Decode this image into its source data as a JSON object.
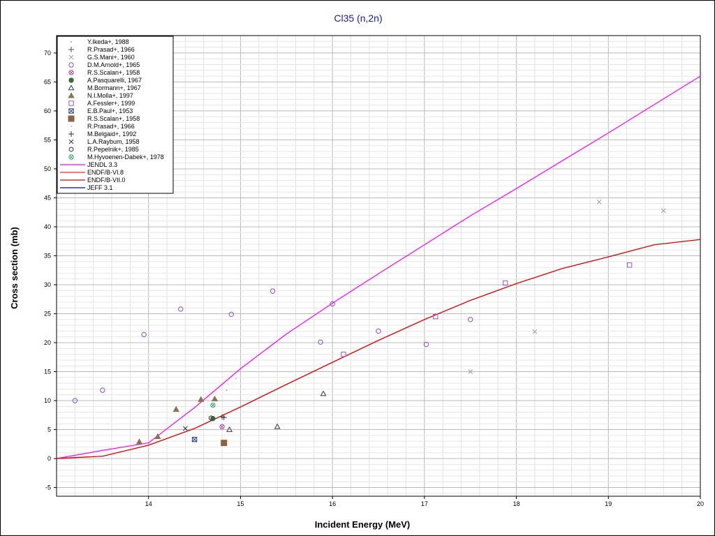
{
  "chart_data": {
    "type": "scatter",
    "title": "Cl35 (n,2n)",
    "xlabel": "Incident Energy (MeV)",
    "ylabel": "Cross section (mb)",
    "xlim": [
      13,
      20
    ],
    "ylim": [
      -6.5,
      73
    ],
    "xticks": [
      14,
      15,
      16,
      17,
      18,
      19,
      20
    ],
    "yticks": [
      -5,
      0,
      5,
      10,
      15,
      20,
      25,
      30,
      35,
      40,
      45,
      50,
      55,
      60,
      65,
      70
    ],
    "grid": true,
    "legend_position": "top-left",
    "series": [
      {
        "name": "Y.Ikeda+, 1988",
        "marker": "dot",
        "color": "#a0a0a0",
        "points": [
          [
            14.85,
            11.8
          ]
        ]
      },
      {
        "name": "R.Prasad+, 1966",
        "marker": "plus",
        "color": "#505050",
        "points": [
          [
            14.8,
            7.2
          ]
        ]
      },
      {
        "name": "G.S.Mani+, 1960",
        "marker": "cross",
        "color": "#a0a0a0",
        "points": [
          [
            17.5,
            15.0
          ],
          [
            18.2,
            21.9
          ],
          [
            18.9,
            44.3
          ],
          [
            19.6,
            42.8
          ]
        ]
      },
      {
        "name": "D.M.Arnold+, 1965",
        "marker": "circle",
        "color": "#8a4fd6",
        "points": [
          [
            13.2,
            10.0
          ],
          [
            13.5,
            11.8
          ],
          [
            13.95,
            21.4
          ],
          [
            14.35,
            25.8
          ],
          [
            14.9,
            24.9
          ],
          [
            15.35,
            28.9
          ],
          [
            15.87,
            20.1
          ],
          [
            16.0,
            26.7
          ],
          [
            16.5,
            22.0
          ],
          [
            17.02,
            19.7
          ],
          [
            17.5,
            24.0
          ]
        ]
      },
      {
        "name": "R.S.Scalan+, 1958",
        "marker": "circle-cross",
        "color": "#b04aa0",
        "points": [
          [
            14.8,
            5.5
          ]
        ]
      },
      {
        "name": "A.Pasquarelli, 1967",
        "marker": "filled-circle",
        "color": "#3e6b34",
        "points": [
          [
            14.7,
            6.9
          ]
        ]
      },
      {
        "name": "M.Bormann+, 1967",
        "marker": "triangle",
        "color": "#3a3a3a",
        "points": [
          [
            14.88,
            5.0
          ],
          [
            15.4,
            5.5
          ],
          [
            15.9,
            11.2
          ]
        ]
      },
      {
        "name": "N.I.Molla+, 1997",
        "marker": "filled-triangle",
        "color": "#8b7355",
        "points": [
          [
            13.9,
            2.9
          ],
          [
            14.1,
            3.8
          ],
          [
            14.3,
            8.5
          ],
          [
            14.57,
            10.2
          ],
          [
            14.72,
            10.3
          ]
        ]
      },
      {
        "name": "A.Fessler+, 1999",
        "marker": "square",
        "color": "#9a55c8",
        "points": [
          [
            16.12,
            18.0
          ],
          [
            17.12,
            24.5
          ],
          [
            17.88,
            30.3
          ],
          [
            19.23,
            33.4
          ]
        ]
      },
      {
        "name": "E.B.Paul+, 1953",
        "marker": "square-cross",
        "color": "#2b3f86",
        "points": [
          [
            14.5,
            3.3
          ]
        ]
      },
      {
        "name": "R.S.Scalan+, 1958",
        "marker": "filled-square",
        "color": "#8b6340",
        "points": [
          [
            14.82,
            2.7
          ]
        ]
      },
      {
        "name": "R.Prasad+, 1966",
        "marker": "dot",
        "color": "#c0c0c0",
        "points": [
          [
            14.95,
            13.8
          ]
        ]
      },
      {
        "name": "M.Belgaid+, 1992",
        "marker": "plus",
        "color": "#303030",
        "points": [
          [
            14.82,
            7.1
          ]
        ]
      },
      {
        "name": "L.A.Raybum, 1958",
        "marker": "cross",
        "color": "#303060",
        "points": [
          [
            14.4,
            5.2
          ]
        ]
      },
      {
        "name": "R.Pepelnik+, 1985",
        "marker": "hexagon",
        "color": "#3a3a60",
        "points": [
          [
            14.68,
            7.0
          ]
        ]
      },
      {
        "name": "M.Hyvoenen-Dabek+, 1978",
        "marker": "circle-cross",
        "color": "#3aa870",
        "points": [
          [
            14.7,
            9.2
          ]
        ]
      }
    ],
    "curves": [
      {
        "name": "JENDL 3.3",
        "color": "#ff00ff",
        "points": [
          [
            13.0,
            0.0
          ],
          [
            13.5,
            1.4
          ],
          [
            14.0,
            2.7
          ],
          [
            14.5,
            8.8
          ],
          [
            15.0,
            15.5
          ],
          [
            15.5,
            21.5
          ],
          [
            16.0,
            26.8
          ],
          [
            16.5,
            31.9
          ],
          [
            17.0,
            36.9
          ],
          [
            17.5,
            41.9
          ],
          [
            18.0,
            46.6
          ],
          [
            18.5,
            51.4
          ],
          [
            19.0,
            56.2
          ],
          [
            19.5,
            61.1
          ],
          [
            20.0,
            66.0
          ]
        ]
      },
      {
        "name": "ENDF/B-VI.8",
        "color": "#ff2020",
        "points": [
          [
            13.0,
            0.0
          ],
          [
            13.5,
            0.4
          ],
          [
            14.0,
            2.3
          ],
          [
            14.5,
            5.2
          ],
          [
            15.0,
            8.9
          ],
          [
            15.5,
            12.8
          ],
          [
            16.0,
            16.6
          ],
          [
            16.5,
            20.4
          ],
          [
            17.0,
            24.0
          ],
          [
            17.5,
            27.3
          ],
          [
            18.0,
            30.2
          ],
          [
            18.5,
            32.8
          ],
          [
            19.0,
            34.8
          ],
          [
            19.5,
            36.9
          ],
          [
            20.0,
            37.8
          ]
        ]
      },
      {
        "name": "ENDF/B-VII.0",
        "color": "#e00000",
        "points": [
          [
            13.0,
            0.0
          ],
          [
            13.5,
            0.4
          ],
          [
            14.0,
            2.3
          ],
          [
            14.5,
            5.2
          ],
          [
            15.0,
            8.9
          ],
          [
            15.5,
            12.8
          ],
          [
            16.0,
            16.6
          ],
          [
            16.5,
            20.4
          ],
          [
            17.0,
            24.0
          ],
          [
            17.5,
            27.3
          ],
          [
            18.0,
            30.2
          ],
          [
            18.5,
            32.8
          ],
          [
            19.0,
            34.8
          ],
          [
            19.5,
            36.9
          ],
          [
            20.0,
            37.8
          ]
        ]
      },
      {
        "name": "JEFF 3.1",
        "color": "#0000cc",
        "points": []
      }
    ]
  }
}
